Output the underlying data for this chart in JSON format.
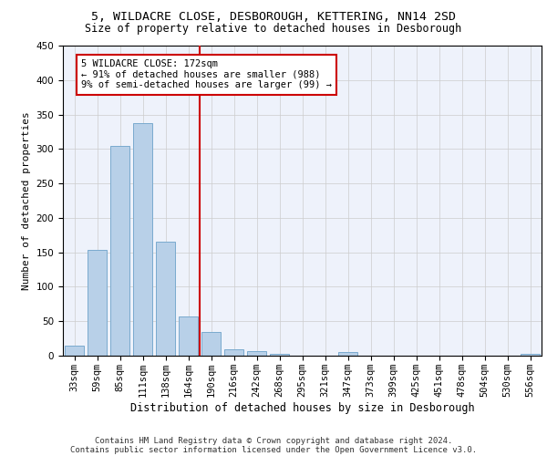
{
  "title1": "5, WILDACRE CLOSE, DESBOROUGH, KETTERING, NN14 2SD",
  "title2": "Size of property relative to detached houses in Desborough",
  "xlabel": "Distribution of detached houses by size in Desborough",
  "ylabel": "Number of detached properties",
  "footer1": "Contains HM Land Registry data © Crown copyright and database right 2024.",
  "footer2": "Contains public sector information licensed under the Open Government Licence v3.0.",
  "bar_labels": [
    "33sqm",
    "59sqm",
    "85sqm",
    "111sqm",
    "138sqm",
    "164sqm",
    "190sqm",
    "216sqm",
    "242sqm",
    "268sqm",
    "295sqm",
    "321sqm",
    "347sqm",
    "373sqm",
    "399sqm",
    "425sqm",
    "451sqm",
    "478sqm",
    "504sqm",
    "530sqm",
    "556sqm"
  ],
  "bar_values": [
    15,
    153,
    305,
    338,
    165,
    57,
    34,
    9,
    7,
    3,
    0,
    0,
    5,
    0,
    0,
    0,
    0,
    0,
    0,
    0,
    3
  ],
  "bar_color": "#b8d0e8",
  "bar_edgecolor": "#7aaace",
  "vline_x": 5.5,
  "vline_color": "#cc0000",
  "annotation_text": "5 WILDACRE CLOSE: 172sqm\n← 91% of detached houses are smaller (988)\n9% of semi-detached houses are larger (99) →",
  "annotation_box_color": "#ffffff",
  "annotation_box_edgecolor": "#cc0000",
  "ylim": [
    0,
    450
  ],
  "yticks": [
    0,
    50,
    100,
    150,
    200,
    250,
    300,
    350,
    400,
    450
  ],
  "bg_color": "#eef2fb",
  "grid_color": "#cccccc",
  "title1_fontsize": 9.5,
  "title2_fontsize": 8.5,
  "xlabel_fontsize": 8.5,
  "ylabel_fontsize": 8,
  "tick_fontsize": 7.5,
  "footer_fontsize": 6.5,
  "annot_fontsize": 7.5
}
